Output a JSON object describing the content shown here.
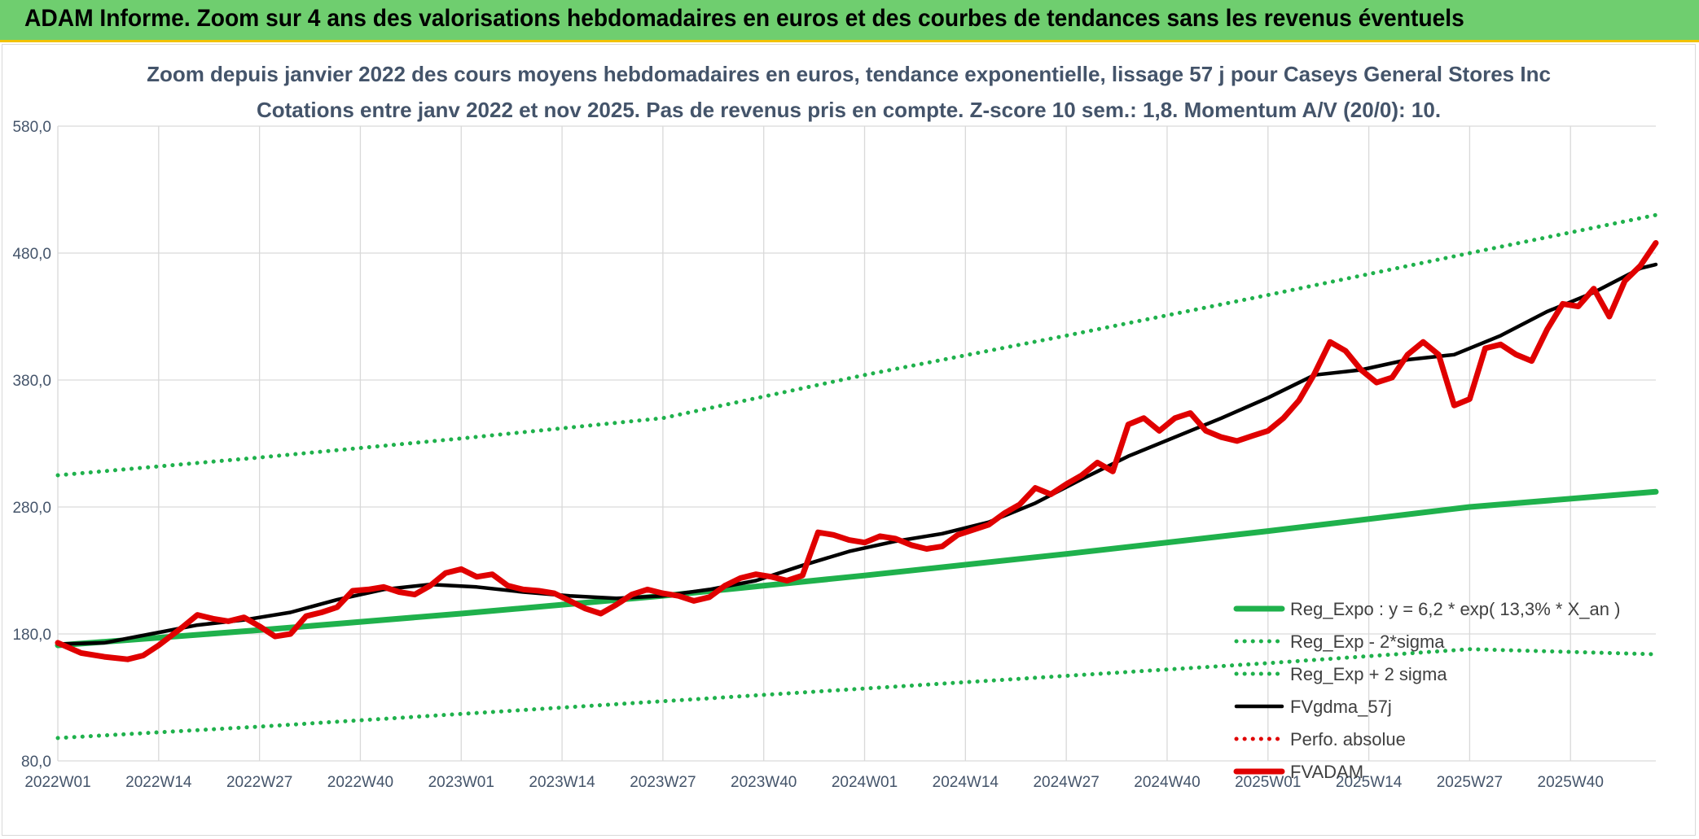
{
  "banner": {
    "title": "ADAM Informe. Zoom sur 4 ans des valorisations hebdomadaires en euros et des courbes de tendances sans les revenus éventuels",
    "background_color": "#6fce6f",
    "accent_color": "#f2c200"
  },
  "chart_data": {
    "type": "line",
    "title": "Zoom depuis janvier 2022 des cours moyens hebdomadaires en euros, tendance exponentielle, lissage 57 j pour Caseys General Stores Inc",
    "subtitle": "Cotations entre janv 2022 et nov 2025. Pas de revenus pris en compte. Z-score 10 sem.: 1,8. Momentum A/V (20/0): 10.",
    "xlabel": "",
    "ylabel": "",
    "ylim": [
      80,
      580
    ],
    "yticks": [
      "80,0",
      "180,0",
      "280,0",
      "380,0",
      "480,0",
      "580,0"
    ],
    "xticks": [
      "2022W01",
      "2022W14",
      "2022W27",
      "2022W40",
      "2023W01",
      "2023W14",
      "2023W27",
      "2023W40",
      "2024W01",
      "2024W14",
      "2024W27",
      "2024W40",
      "2025W01",
      "2025W14",
      "2025W27",
      "2025W40"
    ],
    "grid": true,
    "legend_position": "bottom-right",
    "x_week_range": [
      0,
      206
    ],
    "series": [
      {
        "name": "Reg_Expo : y = 6,2 * exp( 13,3% *  X_an )",
        "color": "#1fb14c",
        "style": "solid",
        "points": [
          [
            0,
            171
          ],
          [
            26,
            183
          ],
          [
            52,
            196
          ],
          [
            78,
            210
          ],
          [
            104,
            226
          ],
          [
            130,
            243
          ],
          [
            156,
            261
          ],
          [
            182,
            280
          ],
          [
            206,
            292
          ]
        ]
      },
      {
        "name": "Reg_Exp - 2*sigma",
        "color": "#1fb14c",
        "style": "dotted",
        "points": [
          [
            0,
            98
          ],
          [
            26,
            107
          ],
          [
            52,
            117
          ],
          [
            78,
            127
          ],
          [
            104,
            137
          ],
          [
            130,
            147
          ],
          [
            156,
            157
          ],
          [
            182,
            168
          ],
          [
            206,
            164
          ]
        ]
      },
      {
        "name": "Reg_Exp + 2 sigma",
        "color": "#1fb14c",
        "style": "dotted",
        "points": [
          [
            0,
            305
          ],
          [
            26,
            319
          ],
          [
            52,
            334
          ],
          [
            78,
            350
          ],
          [
            104,
            384
          ],
          [
            130,
            415
          ],
          [
            156,
            447
          ],
          [
            182,
            480
          ],
          [
            206,
            510
          ]
        ]
      },
      {
        "name": "FVgdma_57j",
        "color": "#000000",
        "style": "solid",
        "points": [
          [
            0,
            172
          ],
          [
            6,
            173
          ],
          [
            12,
            180
          ],
          [
            18,
            187
          ],
          [
            24,
            191
          ],
          [
            30,
            197
          ],
          [
            36,
            207
          ],
          [
            42,
            215
          ],
          [
            48,
            219
          ],
          [
            54,
            217
          ],
          [
            60,
            213
          ],
          [
            66,
            210
          ],
          [
            72,
            208
          ],
          [
            78,
            210
          ],
          [
            84,
            215
          ],
          [
            90,
            222
          ],
          [
            96,
            234
          ],
          [
            102,
            245
          ],
          [
            108,
            253
          ],
          [
            114,
            259
          ],
          [
            120,
            268
          ],
          [
            126,
            283
          ],
          [
            132,
            302
          ],
          [
            138,
            320
          ],
          [
            144,
            335
          ],
          [
            150,
            350
          ],
          [
            156,
            366
          ],
          [
            162,
            384
          ],
          [
            168,
            388
          ],
          [
            174,
            396
          ],
          [
            180,
            400
          ],
          [
            186,
            415
          ],
          [
            192,
            434
          ],
          [
            198,
            449
          ],
          [
            204,
            468
          ],
          [
            206,
            471
          ]
        ]
      },
      {
        "name": "Perfo. absolue",
        "color": "#e00000",
        "style": "dotted",
        "points": []
      },
      {
        "name": "FVADAM",
        "color": "#e00000",
        "style": "solid",
        "points": [
          [
            0,
            173
          ],
          [
            3,
            165
          ],
          [
            6,
            162
          ],
          [
            9,
            160
          ],
          [
            11,
            163
          ],
          [
            13,
            171
          ],
          [
            16,
            185
          ],
          [
            18,
            195
          ],
          [
            20,
            192
          ],
          [
            22,
            190
          ],
          [
            24,
            193
          ],
          [
            26,
            186
          ],
          [
            28,
            178
          ],
          [
            30,
            180
          ],
          [
            32,
            194
          ],
          [
            34,
            197
          ],
          [
            36,
            201
          ],
          [
            38,
            214
          ],
          [
            40,
            215
          ],
          [
            42,
            217
          ],
          [
            44,
            213
          ],
          [
            46,
            211
          ],
          [
            48,
            218
          ],
          [
            50,
            228
          ],
          [
            52,
            231
          ],
          [
            54,
            225
          ],
          [
            56,
            227
          ],
          [
            58,
            218
          ],
          [
            60,
            215
          ],
          [
            62,
            214
          ],
          [
            64,
            212
          ],
          [
            66,
            206
          ],
          [
            68,
            200
          ],
          [
            70,
            196
          ],
          [
            72,
            203
          ],
          [
            74,
            211
          ],
          [
            76,
            215
          ],
          [
            78,
            212
          ],
          [
            80,
            210
          ],
          [
            82,
            206
          ],
          [
            84,
            209
          ],
          [
            86,
            218
          ],
          [
            88,
            224
          ],
          [
            90,
            227
          ],
          [
            92,
            225
          ],
          [
            94,
            222
          ],
          [
            96,
            226
          ],
          [
            98,
            260
          ],
          [
            100,
            258
          ],
          [
            102,
            254
          ],
          [
            104,
            252
          ],
          [
            106,
            257
          ],
          [
            108,
            255
          ],
          [
            110,
            250
          ],
          [
            112,
            247
          ],
          [
            114,
            249
          ],
          [
            116,
            258
          ],
          [
            118,
            262
          ],
          [
            120,
            266
          ],
          [
            122,
            275
          ],
          [
            124,
            282
          ],
          [
            126,
            295
          ],
          [
            128,
            290
          ],
          [
            130,
            298
          ],
          [
            132,
            305
          ],
          [
            134,
            315
          ],
          [
            136,
            308
          ],
          [
            138,
            345
          ],
          [
            140,
            350
          ],
          [
            142,
            340
          ],
          [
            144,
            350
          ],
          [
            146,
            354
          ],
          [
            148,
            340
          ],
          [
            150,
            335
          ],
          [
            152,
            332
          ],
          [
            154,
            336
          ],
          [
            156,
            340
          ],
          [
            158,
            350
          ],
          [
            160,
            364
          ],
          [
            162,
            385
          ],
          [
            164,
            410
          ],
          [
            166,
            403
          ],
          [
            168,
            388
          ],
          [
            170,
            378
          ],
          [
            172,
            382
          ],
          [
            174,
            400
          ],
          [
            176,
            410
          ],
          [
            178,
            400
          ],
          [
            180,
            360
          ],
          [
            182,
            365
          ],
          [
            184,
            405
          ],
          [
            186,
            408
          ],
          [
            188,
            400
          ],
          [
            190,
            395
          ],
          [
            192,
            420
          ],
          [
            194,
            440
          ],
          [
            196,
            438
          ],
          [
            198,
            452
          ],
          [
            200,
            430
          ],
          [
            202,
            458
          ],
          [
            204,
            470
          ],
          [
            206,
            488
          ]
        ]
      }
    ]
  }
}
